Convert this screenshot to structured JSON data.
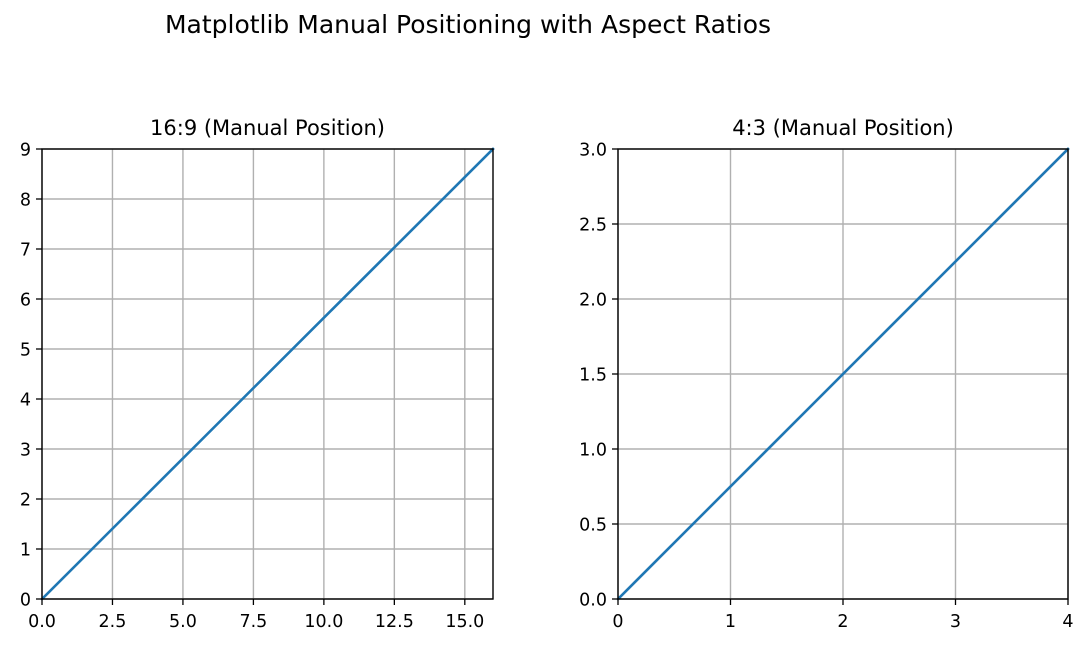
{
  "figure": {
    "suptitle": "Matplotlib Manual Positioning with Aspect Ratios"
  },
  "colors": {
    "line": "#1f77b4",
    "grid": "#b0b0b0",
    "spine": "#000000"
  },
  "chart_data": [
    {
      "type": "line",
      "title": "16:9 (Manual Position)",
      "xlabel": "",
      "ylabel": "",
      "xlim": [
        0,
        16
      ],
      "ylim": [
        0,
        9
      ],
      "xticks": [
        0.0,
        2.5,
        5.0,
        7.5,
        10.0,
        12.5,
        15.0
      ],
      "xtick_labels": [
        "0.0",
        "2.5",
        "5.0",
        "7.5",
        "10.0",
        "12.5",
        "15.0"
      ],
      "yticks": [
        0,
        1,
        2,
        3,
        4,
        5,
        6,
        7,
        8,
        9
      ],
      "ytick_labels": [
        "0",
        "1",
        "2",
        "3",
        "4",
        "5",
        "6",
        "7",
        "8",
        "9"
      ],
      "grid": true,
      "series": [
        {
          "x": [
            0,
            16
          ],
          "y": [
            0,
            9
          ]
        }
      ]
    },
    {
      "type": "line",
      "title": "4:3 (Manual Position)",
      "xlabel": "",
      "ylabel": "",
      "xlim": [
        0,
        4
      ],
      "ylim": [
        0,
        3
      ],
      "xticks": [
        0,
        1,
        2,
        3,
        4
      ],
      "xtick_labels": [
        "0",
        "1",
        "2",
        "3",
        "4"
      ],
      "yticks": [
        0.0,
        0.5,
        1.0,
        1.5,
        2.0,
        2.5,
        3.0
      ],
      "ytick_labels": [
        "0.0",
        "0.5",
        "1.0",
        "1.5",
        "2.0",
        "2.5",
        "3.0"
      ],
      "grid": true,
      "series": [
        {
          "x": [
            0,
            4
          ],
          "y": [
            0,
            3
          ]
        }
      ]
    }
  ]
}
